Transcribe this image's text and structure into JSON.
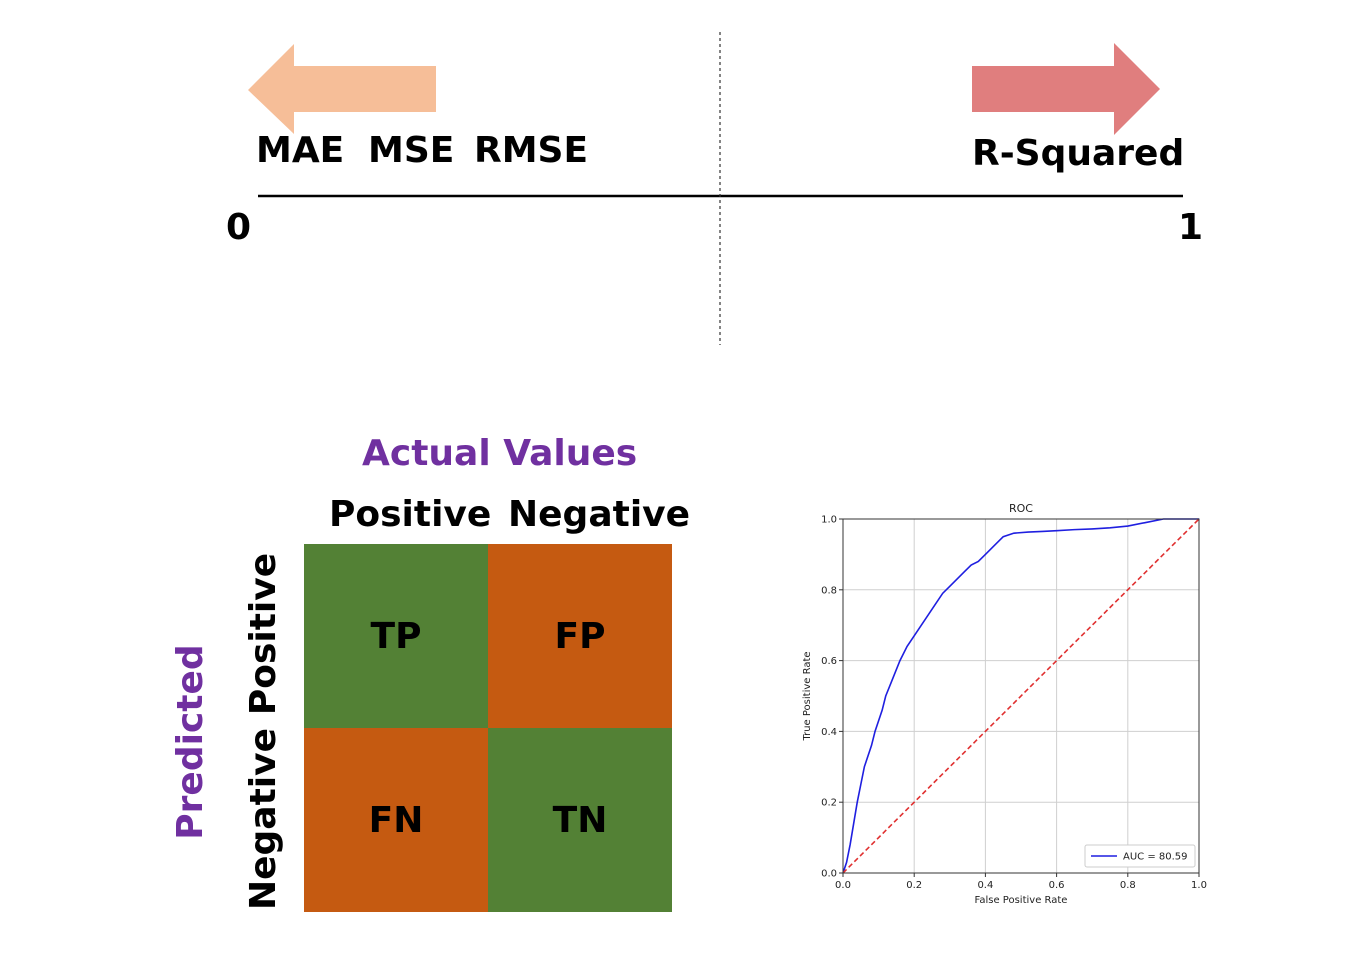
{
  "scale": {
    "left_metrics": [
      "MAE",
      "MSE",
      "RMSE"
    ],
    "right_metric": "R-Squared",
    "min_label": "0",
    "max_label": "1",
    "colors": {
      "left_arrow": "#f6be98",
      "right_arrow": "#e07e7e"
    }
  },
  "confusion": {
    "actual_title": "Actual Values",
    "predicted_title": "Predicted",
    "col_labels": [
      "Positive",
      "Negative"
    ],
    "row_labels": [
      "Positive",
      "Negative"
    ],
    "cells": [
      [
        "TP",
        "FP"
      ],
      [
        "FN",
        "TN"
      ]
    ],
    "colors": {
      "correct": "#538135",
      "error": "#c55a11",
      "title": "#7030a0"
    }
  },
  "chart_data": {
    "type": "line",
    "title": "ROC",
    "xlabel": "False Positive Rate",
    "ylabel": "True Positive Rate",
    "xlim": [
      0.0,
      1.0
    ],
    "ylim": [
      0.0,
      1.0
    ],
    "xticks": [
      "0.0",
      "0.2",
      "0.4",
      "0.6",
      "0.8",
      "1.0"
    ],
    "yticks": [
      "0.0",
      "0.2",
      "0.4",
      "0.6",
      "0.8",
      "1.0"
    ],
    "grid": true,
    "legend_position": "bottom-right",
    "series": [
      {
        "name": "AUC = 80.59",
        "color": "#1f1fe0",
        "x": [
          0.0,
          0.01,
          0.02,
          0.03,
          0.04,
          0.05,
          0.06,
          0.07,
          0.08,
          0.09,
          0.1,
          0.11,
          0.12,
          0.14,
          0.16,
          0.18,
          0.2,
          0.22,
          0.24,
          0.26,
          0.28,
          0.3,
          0.32,
          0.34,
          0.36,
          0.38,
          0.4,
          0.42,
          0.45,
          0.48,
          0.52,
          0.56,
          0.6,
          0.65,
          0.7,
          0.75,
          0.8,
          0.85,
          0.9,
          0.95,
          1.0
        ],
        "y": [
          0.0,
          0.03,
          0.08,
          0.14,
          0.2,
          0.25,
          0.3,
          0.33,
          0.36,
          0.4,
          0.43,
          0.46,
          0.5,
          0.55,
          0.6,
          0.64,
          0.67,
          0.7,
          0.73,
          0.76,
          0.79,
          0.81,
          0.83,
          0.85,
          0.87,
          0.88,
          0.9,
          0.92,
          0.95,
          0.96,
          0.963,
          0.965,
          0.967,
          0.97,
          0.972,
          0.975,
          0.98,
          0.99,
          1.0,
          1.0,
          1.0
        ]
      },
      {
        "name": "",
        "color": "#e03030",
        "dashed": true,
        "x": [
          0.0,
          1.0
        ],
        "y": [
          0.0,
          1.0
        ]
      }
    ]
  }
}
